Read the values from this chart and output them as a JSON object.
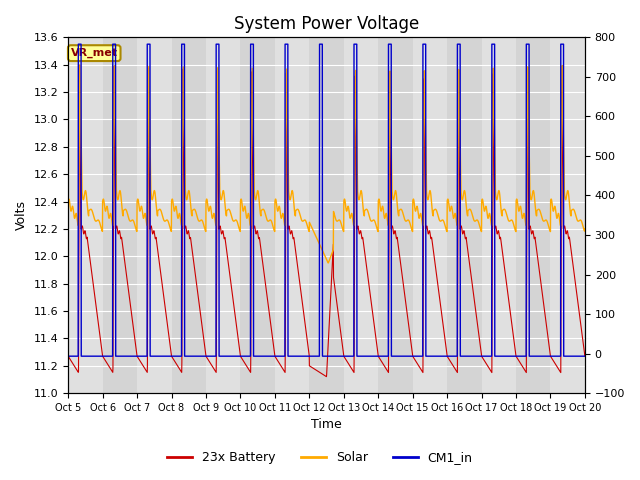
{
  "title": "System Power Voltage",
  "xlabel": "Time",
  "ylabel_left": "Volts",
  "ylim_left": [
    11.0,
    13.6
  ],
  "ylim_right": [
    -100,
    800
  ],
  "yticks_left": [
    11.0,
    11.2,
    11.4,
    11.6,
    11.8,
    12.0,
    12.2,
    12.4,
    12.6,
    12.8,
    13.0,
    13.2,
    13.4,
    13.6
  ],
  "yticks_right": [
    -100,
    0,
    100,
    200,
    300,
    400,
    500,
    600,
    700,
    800
  ],
  "xtick_labels": [
    "Oct 5",
    "Oct 6",
    "Oct 7",
    "Oct 8",
    "Oct 9",
    "Oct 10",
    "Oct 11",
    "Oct 12",
    "Oct 13",
    "Oct 14",
    "Oct 15",
    "Oct 16",
    "Oct 17",
    "Oct 18",
    "Oct 19",
    "Oct 20"
  ],
  "legend_labels": [
    "23x Battery",
    "Solar",
    "CM1_in"
  ],
  "legend_colors": [
    "#cc0000",
    "#ffaa00",
    "#0000cc"
  ],
  "vr_met_label": "VR_met",
  "vr_met_color": "#880000",
  "vr_met_bg": "#ffff99",
  "vr_met_edge": "#aa8800",
  "grid_color": "#ffffff",
  "band_color": "#cccccc",
  "title_fontsize": 12,
  "axis_fontsize": 9,
  "tick_fontsize": 8,
  "n_days": 15,
  "pts_per_day": 200,
  "battery_night": 11.27,
  "battery_min": 11.15,
  "battery_peak": 13.4,
  "battery_day_mid": 12.22,
  "solar_base": 12.4,
  "solar_peak": 13.4,
  "cm1_low": 11.27,
  "cm1_high": 13.55
}
